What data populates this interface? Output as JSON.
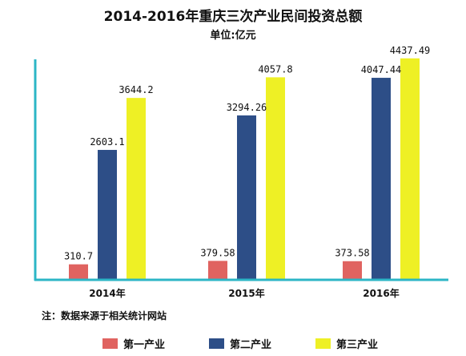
{
  "title": "2014-2016年重庆三次产业民间投资总额",
  "subtitle": "单位:亿元",
  "note": "注：数据来源于相关统计网站",
  "colors": {
    "axis": "#2cb6c6",
    "bar_text": "#111111"
  },
  "chart_data": {
    "type": "bar",
    "categories": [
      "2014年",
      "2015年",
      "2016年"
    ],
    "series": [
      {
        "name": "第一产业",
        "color": "#e06360",
        "values": [
          310.7,
          379.58,
          373.58
        ],
        "labels": [
          "310.7",
          "379.58",
          "373.58"
        ]
      },
      {
        "name": "第二产业",
        "color": "#2d4e87",
        "values": [
          2603.1,
          3294.26,
          4047.44
        ],
        "labels": [
          "2603.1",
          "3294.26",
          "4047.44"
        ]
      },
      {
        "name": "第三产业",
        "color": "#eef025",
        "values": [
          3644.2,
          4057.8,
          4437.49
        ],
        "labels": [
          "3644.2",
          "4057.8",
          "4437.49"
        ]
      }
    ],
    "ylim": [
      0,
      5000
    ],
    "grid": false,
    "legend_position": "bottom"
  }
}
